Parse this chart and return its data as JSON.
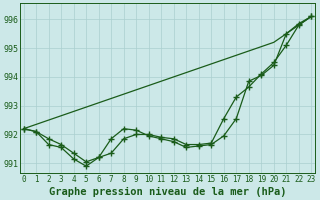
{
  "xlabel": "Graphe pression niveau de la mer (hPa)",
  "x": [
    0,
    1,
    2,
    3,
    4,
    5,
    6,
    7,
    8,
    9,
    10,
    11,
    12,
    13,
    14,
    15,
    16,
    17,
    18,
    19,
    20,
    21,
    22,
    23
  ],
  "line1": [
    992.2,
    992.35,
    992.5,
    992.65,
    992.8,
    992.95,
    993.1,
    993.25,
    993.4,
    993.55,
    993.7,
    993.85,
    994.0,
    994.15,
    994.3,
    994.45,
    994.6,
    994.75,
    994.9,
    995.05,
    995.2,
    995.5,
    995.8,
    996.1
  ],
  "line2": [
    992.2,
    992.1,
    991.85,
    991.65,
    991.35,
    991.05,
    991.2,
    991.35,
    991.85,
    992.0,
    992.0,
    991.9,
    991.85,
    991.65,
    991.65,
    991.7,
    992.55,
    993.3,
    993.65,
    994.1,
    994.5,
    995.1,
    995.8,
    996.1
  ],
  "line3": [
    992.2,
    992.1,
    991.65,
    991.55,
    991.15,
    990.9,
    991.2,
    991.85,
    992.2,
    992.15,
    991.95,
    991.85,
    991.75,
    991.55,
    991.6,
    991.65,
    991.95,
    992.55,
    993.85,
    994.05,
    994.4,
    995.5,
    995.85,
    996.1
  ],
  "line_color": "#1a5c1a",
  "bg_color": "#cce8e8",
  "grid_color": "#aacfcf",
  "ylim_min": 990.65,
  "ylim_max": 996.55,
  "yticks": [
    991,
    992,
    993,
    994,
    995,
    996
  ],
  "marker": "+",
  "markersize": 4,
  "linewidth": 0.9,
  "tick_fontsize": 5.5,
  "xlabel_fontsize": 7.5
}
